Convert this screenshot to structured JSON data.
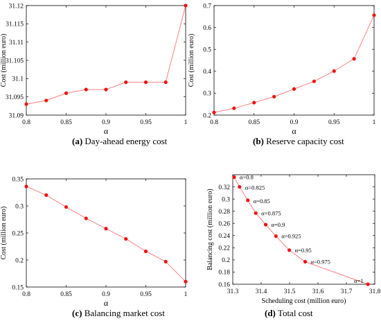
{
  "captions": [
    {
      "label": "(a)",
      "text": "Day-ahead energy cost"
    },
    {
      "label": "(b)",
      "text": "Reserve capacity cost"
    },
    {
      "label": "(c)",
      "text": "Balancing market cost"
    },
    {
      "label": "(d)",
      "text": "Total cost"
    }
  ],
  "styles": {
    "line_color": "#ff7f7f",
    "marker_color": "#ee1111",
    "axis_color": "#000000"
  },
  "chart_data": [
    {
      "type": "line",
      "xlabel": "α",
      "ylabel": "Cost (million euro)",
      "xlim": [
        0.8,
        1
      ],
      "ylim": [
        31.09,
        31.12
      ],
      "xticks": [
        0.8,
        0.85,
        0.9,
        0.95,
        1
      ],
      "xtick_labels": [
        "0.8",
        "0.85",
        "0.9",
        "0.95",
        "1"
      ],
      "yticks": [
        31.09,
        31.095,
        31.1,
        31.105,
        31.11,
        31.115,
        31.12
      ],
      "ytick_labels": [
        "31.09",
        "31.095",
        "31.1",
        "31.105",
        "31.11",
        "31.115",
        "31.12"
      ],
      "x": [
        0.8,
        0.825,
        0.85,
        0.875,
        0.9,
        0.925,
        0.95,
        0.975,
        1
      ],
      "y": [
        31.093,
        31.094,
        31.096,
        31.097,
        31.097,
        31.099,
        31.099,
        31.099,
        31.12
      ]
    },
    {
      "type": "line",
      "xlabel": "α",
      "ylabel": "Cost (million euro)",
      "xlim": [
        0.8,
        1
      ],
      "ylim": [
        0.2,
        0.7
      ],
      "xticks": [
        0.8,
        0.85,
        0.9,
        0.95,
        1
      ],
      "xtick_labels": [
        "0.8",
        "0.85",
        "0.9",
        "0.95",
        "1"
      ],
      "yticks": [
        0.2,
        0.3,
        0.4,
        0.5,
        0.6,
        0.7
      ],
      "ytick_labels": [
        "0.2",
        "0.3",
        "0.4",
        "0.5",
        "0.6",
        "0.7"
      ],
      "x": [
        0.8,
        0.825,
        0.85,
        0.875,
        0.9,
        0.925,
        0.95,
        0.975,
        1
      ],
      "y": [
        0.212,
        0.231,
        0.257,
        0.284,
        0.319,
        0.354,
        0.401,
        0.457,
        0.656
      ]
    },
    {
      "type": "line",
      "xlabel": "α",
      "ylabel": "Cost (million euro)",
      "xlim": [
        0.8,
        1
      ],
      "ylim": [
        0.15,
        0.35
      ],
      "xticks": [
        0.8,
        0.85,
        0.9,
        0.95,
        1
      ],
      "xtick_labels": [
        "0.8",
        "0.85",
        "0.9",
        "0.95",
        "1"
      ],
      "yticks": [
        0.15,
        0.2,
        0.25,
        0.3,
        0.35
      ],
      "ytick_labels": [
        "0.15",
        "0.2",
        "0.25",
        "0.3",
        "0.35"
      ],
      "x": [
        0.8,
        0.825,
        0.85,
        0.875,
        0.9,
        0.925,
        0.95,
        0.975,
        1
      ],
      "y": [
        0.336,
        0.32,
        0.298,
        0.277,
        0.258,
        0.239,
        0.216,
        0.197,
        0.16
      ]
    },
    {
      "type": "line",
      "xlabel": "Scheduling cost (million euro)",
      "ylabel": "Balancing cost (million euro)",
      "xlim": [
        31.3,
        31.8
      ],
      "ylim": [
        0.16,
        0.34
      ],
      "xticks": [
        31.3,
        31.4,
        31.5,
        31.6,
        31.7,
        31.8
      ],
      "xtick_labels": [
        "31.3",
        "31.4",
        "31.5",
        "31.6",
        "31.7",
        "31.8"
      ],
      "yticks": [
        0.16,
        0.18,
        0.2,
        0.22,
        0.24,
        0.26,
        0.28,
        0.3,
        0.32
      ],
      "ytick_labels": [
        "0.16",
        "0.18",
        "0.2",
        "0.22",
        "0.24",
        "0.26",
        "0.28",
        "0.3",
        "0.32"
      ],
      "x": [
        31.305,
        31.324,
        31.353,
        31.381,
        31.416,
        31.452,
        31.499,
        31.555,
        31.776
      ],
      "y": [
        0.336,
        0.32,
        0.298,
        0.277,
        0.258,
        0.239,
        0.216,
        0.197,
        0.16
      ],
      "annotations": [
        "α=0.8",
        "α=0.825",
        "α=0.85",
        "α=0.875",
        "α=0.9",
        "α=0.925",
        "α=0.95",
        "α=0.975",
        "α=1"
      ]
    }
  ]
}
